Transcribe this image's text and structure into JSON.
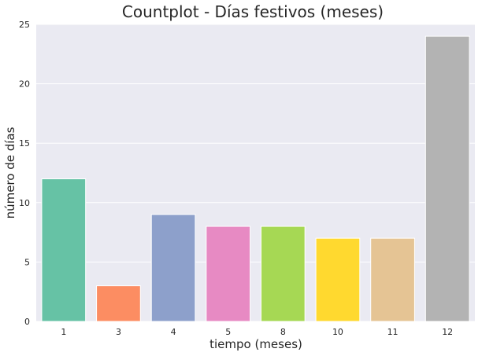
{
  "chart_data": {
    "type": "bar",
    "title": "Countplot - Días festivos (meses)",
    "xlabel": "tiempo (meses)",
    "ylabel": "número de días",
    "categories": [
      "1",
      "3",
      "4",
      "5",
      "8",
      "10",
      "11",
      "12"
    ],
    "values": [
      12,
      3,
      9,
      8,
      8,
      7,
      7,
      24
    ],
    "colors": [
      "#66c2a5",
      "#fc8d62",
      "#8da0cb",
      "#e78ac3",
      "#a6d854",
      "#ffd92f",
      "#e5c494",
      "#b3b3b3"
    ],
    "ylim": [
      0,
      25
    ],
    "yticks": [
      0,
      5,
      10,
      15,
      20,
      25
    ],
    "grid": true,
    "background": "#eaeaf2"
  }
}
